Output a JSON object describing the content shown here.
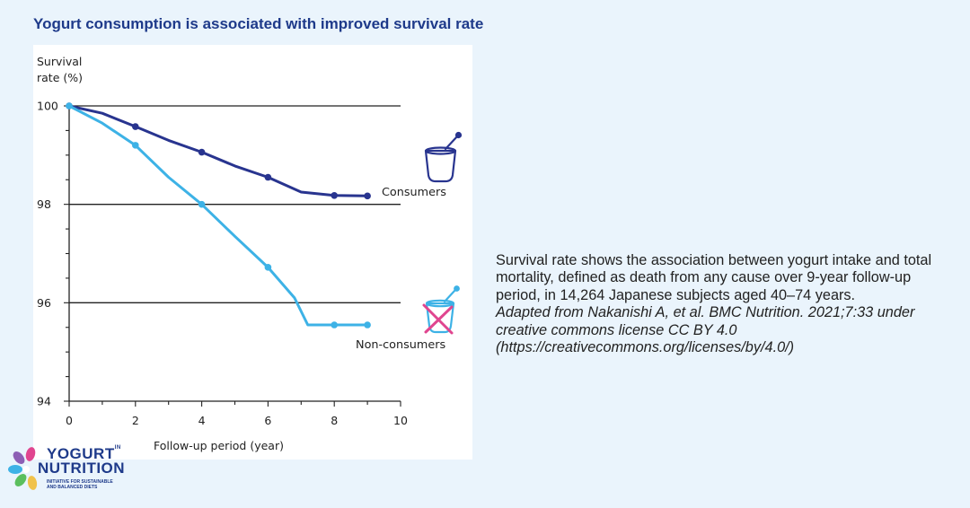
{
  "title": "Yogurt consumption is associated with improved survival rate",
  "caption": {
    "body": "Survival rate shows the association between yogurt intake and total mortality, defined as death from any cause over 9-year follow-up period, in 14,264 Japanese subjects aged 40–74 years.",
    "source": "Adapted from Nakanishi A, et al. BMC Nutrition. 2021;7:33 under creative commons license CC BY 4.0 (https://creativecommons.org/licenses/by/4.0/)"
  },
  "logo": {
    "word1": "YOGURT",
    "word_in": "IN",
    "word2": "NUTRITION",
    "tagline1": "INITIATIVE FOR SUSTAINABLE",
    "tagline2": "AND BALANCED DIETS"
  },
  "colors": {
    "consumers": "#28348f",
    "non_consumers": "#3db2e6",
    "title": "#1e3a8a",
    "cross": "#e0458f"
  },
  "chart_data": {
    "type": "line",
    "title": "",
    "xlabel": "Follow-up period (year)",
    "ylabel_line1": "Survival",
    "ylabel_line2": "rate (%)",
    "xlim": [
      0,
      10
    ],
    "ylim": [
      94,
      100
    ],
    "x_ticks": [
      "0",
      "2",
      "4",
      "6",
      "8",
      "10"
    ],
    "y_ticks": [
      "94",
      "96",
      "98",
      "100"
    ],
    "grid": true,
    "series": [
      {
        "name": "Consumers",
        "line": [
          [
            0,
            100
          ],
          [
            1,
            99.85
          ],
          [
            2,
            99.58
          ],
          [
            3,
            99.3
          ],
          [
            4,
            99.06
          ],
          [
            5,
            98.78
          ],
          [
            6,
            98.55
          ],
          [
            7,
            98.25
          ],
          [
            8,
            98.18
          ],
          [
            9,
            98.17
          ]
        ],
        "markers": [
          [
            0,
            100
          ],
          [
            2,
            99.58
          ],
          [
            4,
            99.06
          ],
          [
            6,
            98.55
          ],
          [
            8,
            98.18
          ],
          [
            9,
            98.17
          ]
        ]
      },
      {
        "name": "Non-consumers",
        "line": [
          [
            0,
            100
          ],
          [
            1,
            99.65
          ],
          [
            2,
            99.2
          ],
          [
            3,
            98.55
          ],
          [
            4,
            98.0
          ],
          [
            5,
            97.35
          ],
          [
            6,
            96.72
          ],
          [
            6.8,
            96.1
          ],
          [
            7.2,
            95.55
          ],
          [
            8,
            95.55
          ],
          [
            9,
            95.55
          ]
        ],
        "markers": [
          [
            0,
            100
          ],
          [
            2,
            99.2
          ],
          [
            4,
            98.0
          ],
          [
            6,
            96.72
          ],
          [
            8,
            95.55
          ],
          [
            9,
            95.55
          ]
        ]
      }
    ]
  }
}
